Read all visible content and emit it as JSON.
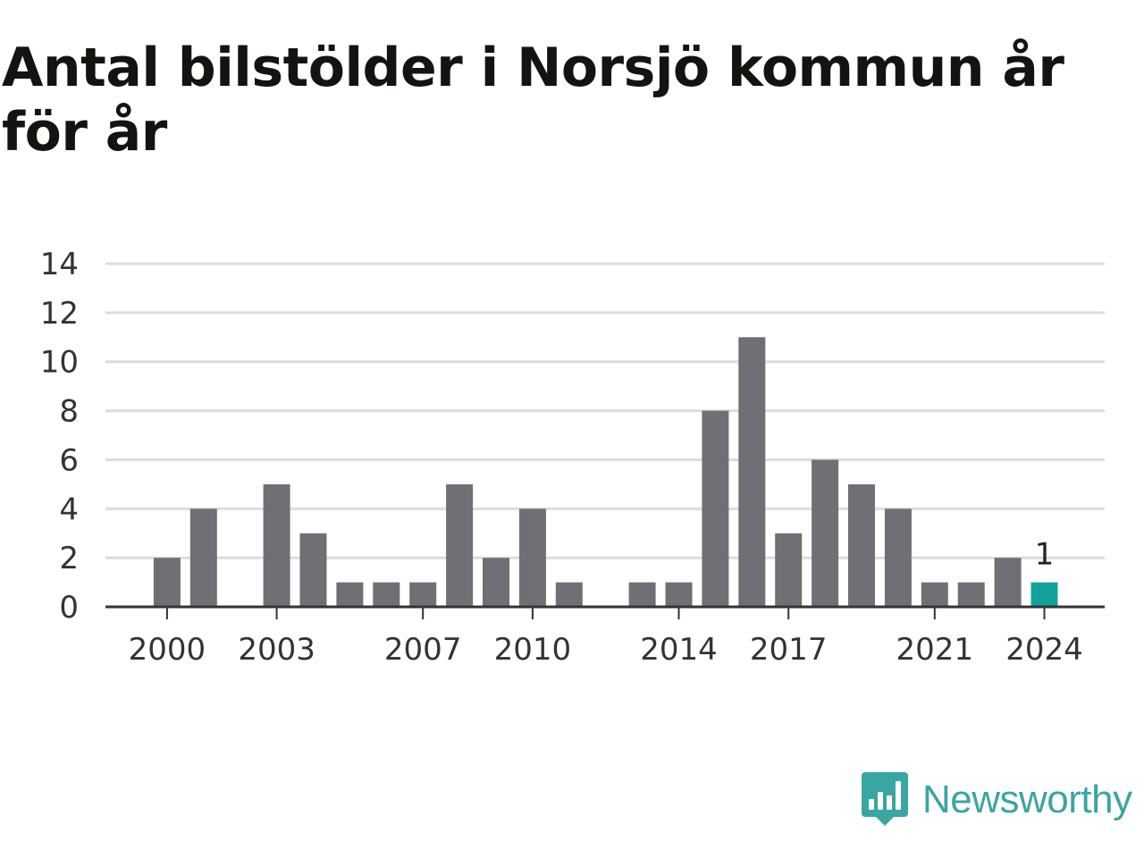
{
  "title": "Antal bilstölder i Norsjö kommun år för år",
  "logo": {
    "text": "Newsworthy",
    "icon": "newsworthy-bar-chart-icon",
    "color": "#3aa6a2"
  },
  "colors": {
    "bar": "#706f75",
    "highlight": "#13a29a",
    "grid": "#dcdcdc",
    "axis": "#333333"
  },
  "chart_data": {
    "type": "bar",
    "title": "Antal bilstölder i Norsjö kommun år för år",
    "xlabel": "",
    "ylabel": "",
    "categories": [
      1999,
      2000,
      2001,
      2002,
      2003,
      2004,
      2005,
      2006,
      2007,
      2008,
      2009,
      2010,
      2011,
      2012,
      2013,
      2014,
      2015,
      2016,
      2017,
      2018,
      2019,
      2020,
      2021,
      2022,
      2023,
      2024
    ],
    "values": [
      null,
      2,
      4,
      0,
      5,
      3,
      1,
      1,
      1,
      5,
      2,
      4,
      1,
      0,
      1,
      1,
      8,
      11,
      3,
      6,
      5,
      4,
      1,
      1,
      2,
      1
    ],
    "highlight_category": 2024,
    "x_tick_labels": [
      "2000",
      "2003",
      "2007",
      "2010",
      "2014",
      "2017",
      "2021",
      "2024"
    ],
    "y_ticks": [
      0,
      2,
      4,
      6,
      8,
      10,
      12,
      14
    ],
    "ylim": [
      0,
      14
    ],
    "grid": true,
    "legend": false,
    "data_labels": [
      {
        "category": 2024,
        "text": "1"
      }
    ]
  }
}
